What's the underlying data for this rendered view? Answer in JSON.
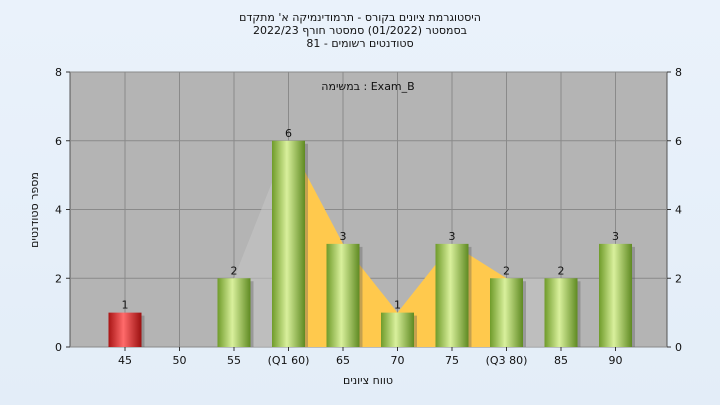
{
  "chart_data": {
    "type": "bar",
    "title_lines": [
      "היסטוגרמת ציונים בקורס - תרמודינמיקה א' מתקדם",
      "בסמסטר  (01/2022)  סמסטר חורף  2022/23",
      "סטודנטים רשומים - 81"
    ],
    "legend_text": "במשימה : Exam_B",
    "xlabel": "טווח ציונים",
    "ylabel": "מספר סטודנטים",
    "categories": [
      "45",
      "50",
      "55",
      "(Q1 60)",
      "65",
      "70",
      "75",
      "(Q3 80)",
      "85",
      "90"
    ],
    "values": [
      1,
      0,
      2,
      6,
      3,
      1,
      3,
      2,
      2,
      3
    ],
    "ylim": [
      0,
      8
    ],
    "yticks": [
      0,
      2,
      4,
      6,
      8
    ],
    "grid": true,
    "highlight_bar_color": "#d42a2a",
    "bar_color": "#8fbc3e",
    "iqr_band_color": "#ffc94d",
    "iqr_range": [
      "(Q1 60)",
      "(Q3 80)"
    ],
    "plot_background": "#b4b4b4"
  }
}
